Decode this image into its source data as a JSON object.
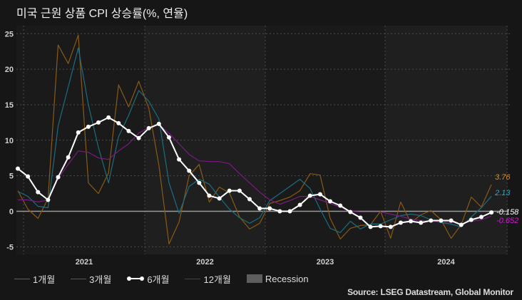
{
  "title": "미국 근원 상품 CPI 상승률(%, 연율)",
  "legend": {
    "items": [
      {
        "label": "1개월",
        "color": "#8a5a14"
      },
      {
        "label": "3개월",
        "color": "#1b6e80"
      },
      {
        "label": "6개월",
        "color": "#ffffff"
      },
      {
        "label": "12개월",
        "color": "#7a1a82"
      },
      {
        "label": "Recession",
        "color": "#5e5e5e"
      }
    ]
  },
  "source": "Source: LSEG Datastream, Global Monitor",
  "end_labels": [
    {
      "series": "1개월",
      "text": "3.76",
      "color": "#e08a1e"
    },
    {
      "series": "3개월",
      "text": "2.13",
      "color": "#1cb0d8"
    },
    {
      "series": "6개월",
      "text": "-0.158",
      "color": "#ffffff"
    },
    {
      "series": "12개월",
      "text": "-0.652",
      "color": "#d21ad8"
    }
  ],
  "chart_data": {
    "type": "line",
    "title": "미국 근원 상품 CPI 상승률(%, 연율)",
    "xlabel": "",
    "ylabel": "",
    "ylim": [
      -6,
      26
    ],
    "yticks": [
      25,
      20,
      15,
      10,
      5,
      0,
      -5
    ],
    "xtick_labels": [
      "2021",
      "2022",
      "2023",
      "2024"
    ],
    "grid": true,
    "legend_position": "bottom",
    "x_start": "2020-12",
    "x_end": "2024-11",
    "frequency": "monthly",
    "recession_shading": false,
    "series": [
      {
        "name": "1개월",
        "color": "#8a5a14",
        "values": [
          2.9,
          0.3,
          -1.0,
          1.8,
          23.4,
          20.8,
          24.8,
          4.0,
          2.5,
          5.4,
          17.8,
          14.7,
          18.3,
          14.5,
          6.5,
          -4.6,
          -1.5,
          5.0,
          6.6,
          1.3,
          3.4,
          2.6,
          -0.8,
          -2.5,
          -1.7,
          1.1,
          1.5,
          2.0,
          2.9,
          5.3,
          5.1,
          -1.0,
          -3.9,
          -2.4,
          -2.0,
          -1.9,
          0.0,
          -3.8,
          1.3,
          -1.6,
          -0.5,
          0.1,
          -1.2,
          -3.8,
          -1.9,
          2.0,
          0.6,
          3.76
        ]
      },
      {
        "name": "3개월",
        "color": "#1b6e80",
        "values": [
          2.8,
          2.1,
          0.7,
          0.5,
          12.0,
          17.5,
          23.0,
          15.0,
          9.0,
          4.0,
          10.5,
          13.5,
          17.0,
          15.5,
          13.0,
          4.0,
          -0.3,
          3.5,
          4.5,
          3.8,
          2.0,
          0.3,
          -0.9,
          -1.7,
          -0.9,
          1.5,
          2.5,
          3.5,
          4.5,
          3.2,
          0.3,
          -2.4,
          -3.0,
          -1.4,
          -2.5,
          -1.8,
          -1.8,
          -1.2,
          -0.6,
          -0.4,
          -0.6,
          -1.2,
          -1.6,
          -1.8,
          -2.2,
          -0.8,
          0.5,
          2.13
        ]
      },
      {
        "name": "6개월",
        "color": "#ffffff",
        "values": [
          6.0,
          4.9,
          2.7,
          1.6,
          4.8,
          7.6,
          11.1,
          11.9,
          12.5,
          13.2,
          12.4,
          11.3,
          10.3,
          11.7,
          12.3,
          10.4,
          7.3,
          5.7,
          4.0,
          2.2,
          1.8,
          2.9,
          2.9,
          1.7,
          0.4,
          0.4,
          0.0,
          0.0,
          0.9,
          2.2,
          2.4,
          1.4,
          0.8,
          -0.1,
          -0.9,
          -2.2,
          -2.1,
          -2.2,
          -1.6,
          -1.4,
          -1.6,
          -1.3,
          -1.3,
          -1.3,
          -1.9,
          -1.2,
          -0.8,
          -0.158
        ]
      },
      {
        "name": "12개월",
        "color": "#7a1a82",
        "values": [
          1.6,
          1.6,
          1.3,
          1.6,
          4.6,
          6.6,
          8.5,
          8.3,
          7.5,
          7.3,
          8.5,
          9.5,
          11.0,
          11.8,
          12.2,
          11.0,
          9.5,
          8.0,
          7.1,
          7.0,
          7.0,
          6.7,
          5.3,
          4.0,
          2.7,
          1.6,
          1.0,
          1.5,
          2.1,
          2.1,
          1.6,
          1.1,
          0.6,
          0.0,
          -0.1,
          -0.1,
          -0.1,
          -0.4,
          -0.7,
          -1.1,
          -1.3,
          -1.4,
          -1.5,
          -1.5,
          -1.8,
          -1.4,
          -1.2,
          -0.652
        ]
      }
    ]
  }
}
